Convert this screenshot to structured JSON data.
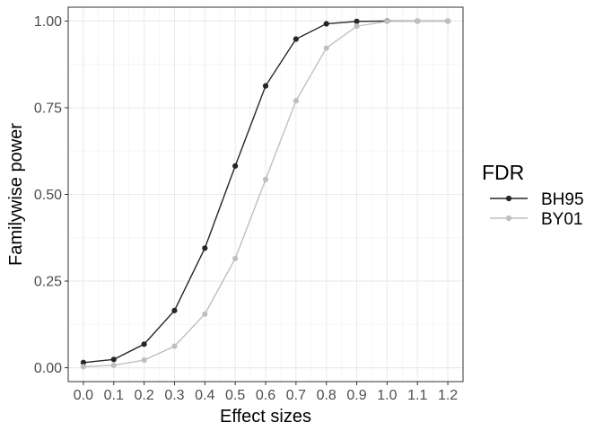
{
  "chart_data": {
    "type": "line",
    "title": "",
    "xlabel": "Effect sizes",
    "ylabel": "Familywise power",
    "x": [
      0.0,
      0.1,
      0.2,
      0.3,
      0.4,
      0.5,
      0.6,
      0.7,
      0.8,
      0.9,
      1.0,
      1.1,
      1.2
    ],
    "x_tick_labels": [
      "0.0",
      "0.1",
      "0.2",
      "0.3",
      "0.4",
      "0.5",
      "0.6",
      "0.7",
      "0.8",
      "0.9",
      "1.0",
      "1.1",
      "1.2"
    ],
    "y_ticks": [
      0.0,
      0.25,
      0.5,
      0.75,
      1.0
    ],
    "y_tick_labels": [
      "0.00",
      "0.25",
      "0.50",
      "0.75",
      "1.00"
    ],
    "xlim": [
      -0.05,
      1.25
    ],
    "ylim": [
      -0.04,
      1.04
    ],
    "grid": true,
    "legend": {
      "title": "FDR",
      "position": "right"
    },
    "series": [
      {
        "name": "BH95",
        "color": "#262626",
        "values": [
          0.015,
          0.024,
          0.068,
          0.165,
          0.345,
          0.582,
          0.813,
          0.948,
          0.992,
          0.999,
          1.0,
          1.0,
          1.0
        ]
      },
      {
        "name": "BY01",
        "color": "#bfbfbf",
        "values": [
          0.003,
          0.007,
          0.022,
          0.062,
          0.155,
          0.315,
          0.543,
          0.77,
          0.922,
          0.985,
          0.999,
          1.0,
          1.0
        ]
      }
    ]
  }
}
